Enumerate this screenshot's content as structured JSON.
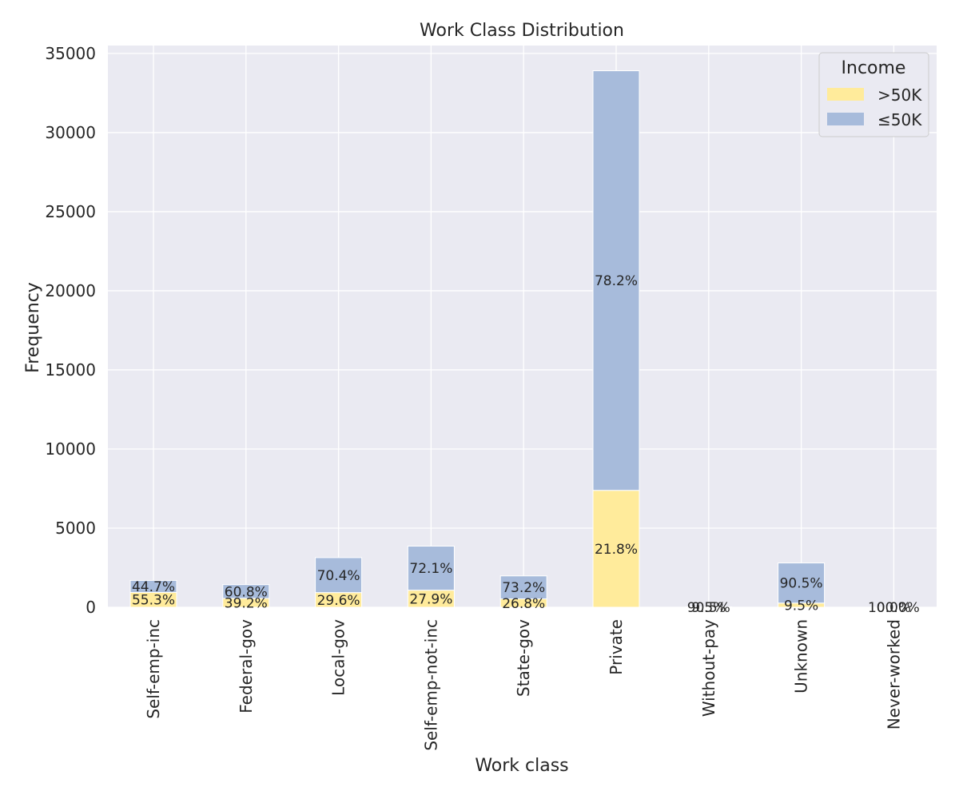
{
  "chart_data": {
    "type": "bar",
    "stacked": true,
    "title": "Work Class Distribution",
    "xlabel": "Work class",
    "ylabel": "Frequency",
    "ylim": [
      0,
      35500
    ],
    "yticks": [
      0,
      5000,
      10000,
      15000,
      20000,
      25000,
      30000,
      35000
    ],
    "grid": true,
    "legend_title": "Income",
    "legend_position": "top-right",
    "categories": [
      "Self-emp-inc",
      "Federal-gov",
      "Local-gov",
      "Self-emp-not-inc",
      "State-gov",
      "Private",
      "Without-pay",
      "Unknown",
      "Never-worked"
    ],
    "series": [
      {
        "name": ">50K",
        "color": "#ffeb9b",
        "values": [
          937,
          561,
          927,
          1077,
          530,
          7387,
          2,
          265,
          0
        ],
        "labels": [
          "55.3%",
          "39.2%",
          "29.6%",
          "27.9%",
          "26.8%",
          "21.8%",
          "9.5%",
          "9.5%",
          "0.0%"
        ]
      },
      {
        "name": "≤50K",
        "color": "#a7bbdb",
        "values": [
          758,
          871,
          2209,
          2785,
          1451,
          26519,
          19,
          2534,
          10
        ],
        "labels": [
          "44.7%",
          "60.8%",
          "70.4%",
          "72.1%",
          "73.2%",
          "78.2%",
          "90.5%",
          "90.5%",
          "100.0%"
        ]
      }
    ]
  }
}
